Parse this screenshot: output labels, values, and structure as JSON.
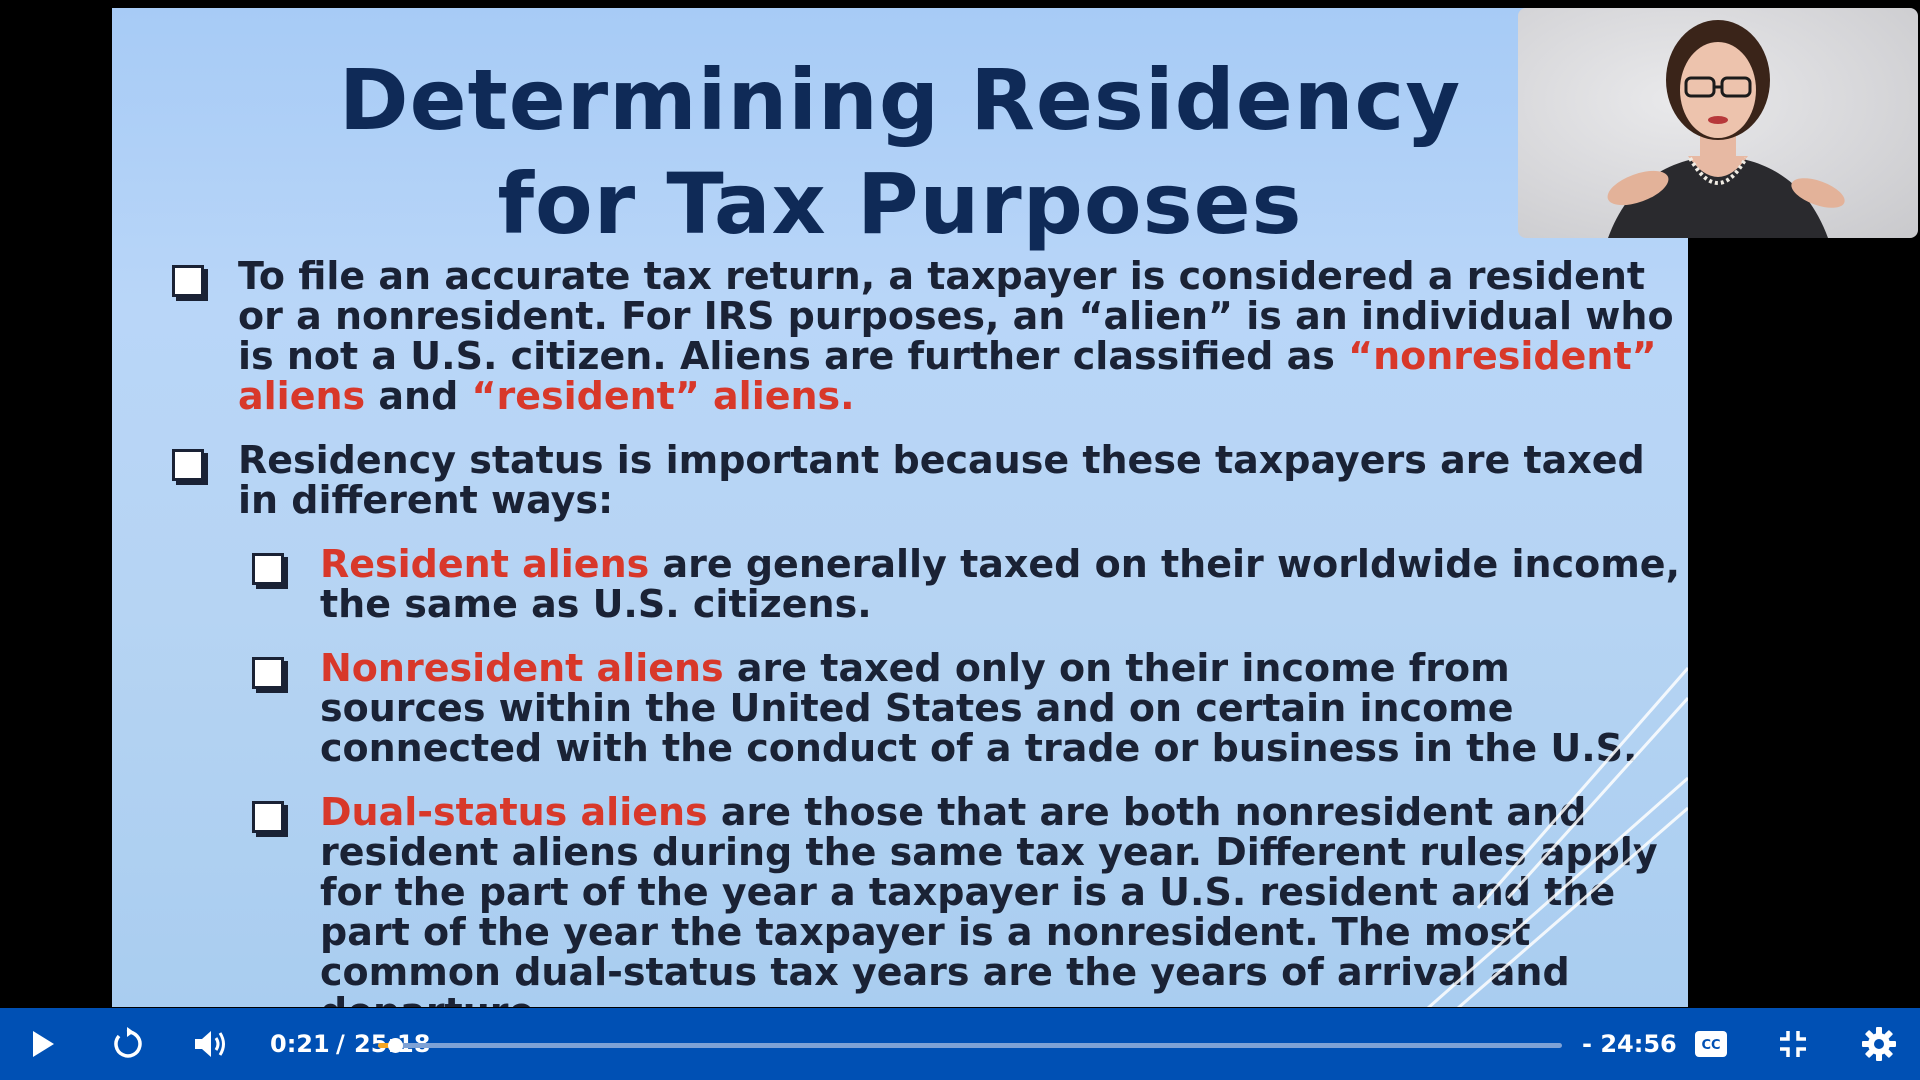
{
  "slide": {
    "title_line1": "Determining Residency",
    "title_line2": "for Tax Purposes",
    "bullet1": {
      "text": "To file an accurate tax return, a taxpayer is considered a resident or a nonresident. For IRS purposes, an “alien” is an individual who is not a U.S. citizen.  Aliens are further classified as ",
      "red1": "“nonresident” aliens",
      "mid": " and ",
      "red2": "“resident” aliens."
    },
    "bullet2": {
      "text": "Residency status is important because these taxpayers are taxed in different ways:"
    },
    "sub1": {
      "red": "Resident aliens",
      "text": " are generally taxed on their worldwide income, the same as U.S. citizens."
    },
    "sub2": {
      "red": "Nonresident aliens",
      "text": " are taxed only on their income from sources within the United States and on certain income connected with the conduct of a trade or business in the U.S."
    },
    "sub3": {
      "red": "Dual-status aliens",
      "text": " are those that are both nonresident and resident aliens during the same tax year. Different rules apply for the part of the year a taxpayer is a U.S. resident and the part of the year the taxpayer is a nonresident. The most common dual-status tax years are the years of arrival and departure."
    }
  },
  "player": {
    "current_time": "0:21",
    "separator": "/",
    "duration": "25:18",
    "remaining": "- 24:56",
    "progress_fraction": 0.014,
    "accent_color": "#0050b4",
    "progress_color": "#f5a623"
  },
  "icons": [
    "play-icon",
    "replay-icon",
    "volume-icon",
    "captions-icon",
    "exit-fullscreen-icon",
    "settings-icon"
  ]
}
